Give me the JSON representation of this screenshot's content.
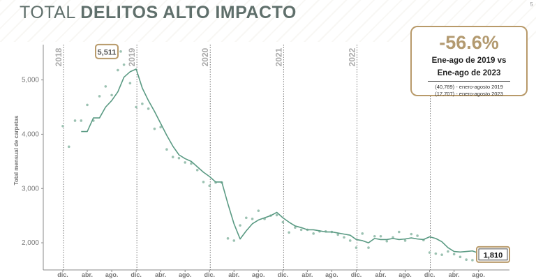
{
  "title": {
    "light": "TOTAL ",
    "bold": "DELITOS ALTO IMPACTO"
  },
  "page_number": "5",
  "summary": {
    "percent": "-56.6%",
    "line1": "Ene-ago de 2019 vs",
    "line2": "Ene-ago de 2023",
    "note1": "(40,789) - enero-agosto 2019",
    "note2": "(17,707) - enero-agosto 2023"
  },
  "chart_data": {
    "type": "line",
    "ylabel": "Total mensual de carpetas",
    "ylim": [
      1500,
      5650
    ],
    "yticks": [
      2000,
      3000,
      4000,
      5000
    ],
    "ytick_labels": [
      "2,000",
      "3,000",
      "4,000",
      "5,000"
    ],
    "x_tick_labels": [
      "dic.",
      "abr.",
      "ago.",
      "dic.",
      "abr.",
      "ago.",
      "dic.",
      "abr.",
      "ago.",
      "dic.",
      "abr.",
      "ago.",
      "dic.",
      "abr.",
      "ago.",
      "dic.",
      "abr.",
      "ago."
    ],
    "year_labels": [
      "2018",
      "2019",
      "2020",
      "2021",
      "2022"
    ],
    "colors": {
      "line": "#5a9a83",
      "points": "#9cc2b2",
      "accent": "#b89a6a"
    },
    "series": [
      {
        "type": "moving_average",
        "values": [
          4050,
          4050,
          4300,
          4300,
          4500,
          4620,
          4780,
          5050,
          5150,
          5200,
          4850,
          4620,
          4420,
          4200,
          3980,
          3780,
          3620,
          3550,
          3500,
          3400,
          3300,
          3220,
          3120,
          3120,
          2720,
          2350,
          2070,
          2220,
          2350,
          2420,
          2460,
          2500,
          2560,
          2460,
          2380,
          2310,
          2280,
          2240,
          2240,
          2220,
          2200,
          2200,
          2180,
          2160,
          2140,
          2060,
          2040,
          2000,
          2080,
          2060,
          2060,
          2080,
          2060,
          2070,
          2090,
          2070,
          2060,
          2110,
          2080,
          2020,
          1910,
          1840,
          1830,
          1840,
          1850,
          1810,
          1770,
          1740
        ]
      },
      {
        "type": "monthly",
        "values": [
          4150,
          3770,
          4250,
          4250,
          4540,
          4250,
          4700,
          4880,
          4720,
          5180,
          5280,
          4940,
          4500,
          4560,
          4470,
          4100,
          4130,
          3720,
          3580,
          3560,
          3480,
          3460,
          3340,
          3120,
          3050,
          3110,
          3110,
          2080,
          2040,
          2320,
          2460,
          2440,
          2590,
          2440,
          2500,
          2510,
          2380,
          2190,
          2280,
          2240,
          2240,
          2170,
          2210,
          2210,
          2200,
          2150,
          2100,
          2040,
          1910,
          2170,
          1910,
          2120,
          2120,
          2030,
          2100,
          2200,
          2040,
          2160,
          2130,
          2050,
          1820,
          1800,
          1780,
          1840,
          1790,
          1740,
          1690,
          1680
        ]
      }
    ],
    "annotations": [
      {
        "label": "5,511",
        "value": 5511,
        "period": "may 2019"
      },
      {
        "label": "1,810",
        "value": 1810,
        "period": "ago. 2023"
      }
    ]
  }
}
